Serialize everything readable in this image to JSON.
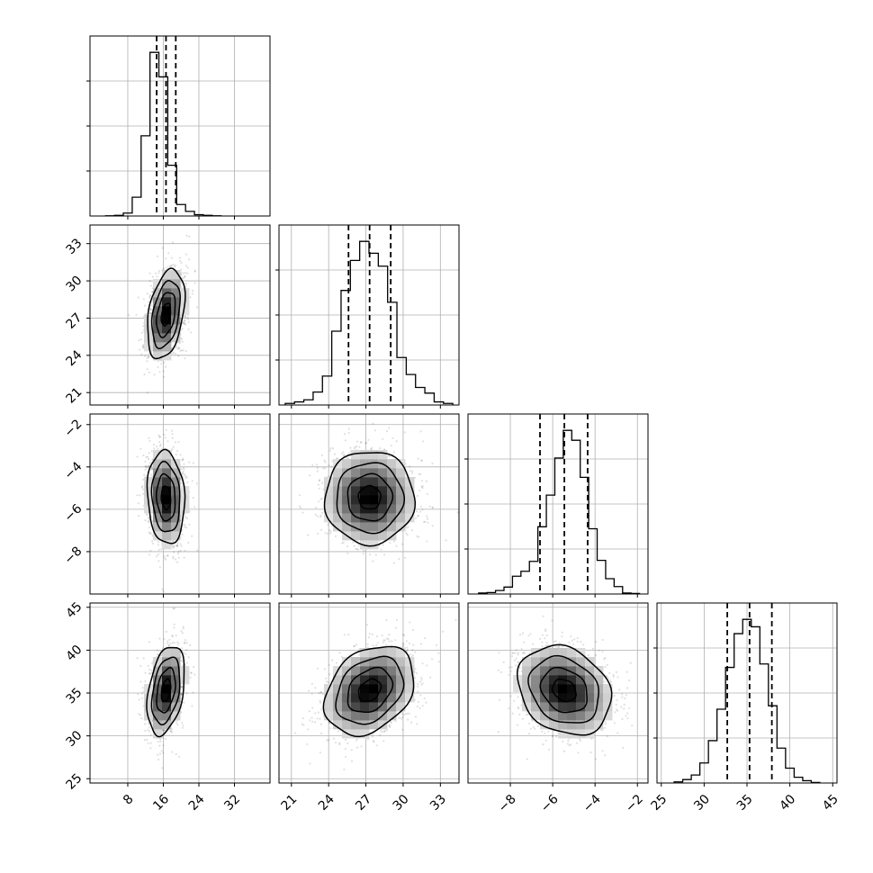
{
  "chart_data": {
    "type": "corner",
    "title": "",
    "parameters": [
      "",
      "",
      "",
      ""
    ],
    "grid": true,
    "colors": {
      "hist": "#000000",
      "quantile": "#000000",
      "grid": "#b0b0b0",
      "density": "#000000",
      "points": "#000000"
    },
    "quantile_style": "dashed",
    "ranges": [
      [
        -0.5,
        40
      ],
      [
        20,
        34.5
      ],
      [
        -10,
        -1.5
      ],
      [
        24.5,
        45.5
      ]
    ],
    "ticks": [
      {
        "values": [
          8,
          16,
          24,
          32
        ],
        "labels": [
          "8",
          "16",
          "24",
          "32"
        ]
      },
      {
        "values": [
          21,
          24,
          27,
          30,
          33
        ],
        "labels": [
          "21",
          "24",
          "27",
          "30",
          "33"
        ]
      },
      {
        "values": [
          -8,
          -6,
          -4,
          -2
        ],
        "labels": [
          "−8",
          "−6",
          "−4",
          "−2"
        ]
      },
      {
        "values": [
          25,
          30,
          35,
          40,
          45
        ],
        "labels": [
          "25",
          "30",
          "35",
          "40",
          "45"
        ]
      }
    ],
    "quantiles": [
      [
        14.5,
        16.6,
        18.8
      ],
      [
        25.6,
        27.3,
        29.0
      ],
      [
        -6.6,
        -5.45,
        -4.35
      ],
      [
        32.7,
        35.3,
        37.9
      ]
    ],
    "histograms": [
      {
        "edges": [
          3,
          5,
          7,
          9,
          11,
          13,
          15,
          17,
          19,
          21,
          23,
          25,
          27,
          29
        ],
        "counts": [
          1,
          4,
          18,
          115,
          490,
          1000,
          850,
          310,
          70,
          28,
          8,
          4,
          1
        ]
      },
      {
        "edges": [
          20.5,
          21.25,
          22,
          22.75,
          23.5,
          24.25,
          25,
          25.75,
          26.5,
          27.25,
          28,
          28.75,
          29.5,
          30.25,
          31,
          31.75,
          32.5,
          33.25,
          34
        ],
        "counts": [
          3,
          6,
          10,
          25,
          56,
          143,
          222,
          280,
          317,
          294,
          269,
          199,
          92,
          59,
          34,
          23,
          6,
          3
        ]
      },
      {
        "edges": [
          -9.5,
          -9.1,
          -8.7,
          -8.3,
          -7.9,
          -7.5,
          -7.1,
          -6.7,
          -6.3,
          -5.9,
          -5.5,
          -5.1,
          -4.7,
          -4.3,
          -3.9,
          -3.5,
          -3.1,
          -2.7,
          -2.3,
          -1.9
        ],
        "counts": [
          2,
          3,
          7,
          14,
          36,
          46,
          66,
          136,
          200,
          275,
          331,
          311,
          236,
          132,
          68,
          31,
          15,
          2,
          1
        ]
      },
      {
        "edges": [
          26.5,
          27.5,
          28.5,
          29.5,
          30.5,
          31.5,
          32.5,
          33.5,
          34.5,
          35.5,
          36.5,
          37.5,
          38.5,
          39.5,
          40.5,
          41.5,
          42.5,
          43.5
        ],
        "counts": [
          2,
          6,
          14,
          35,
          74,
          129,
          202,
          261,
          286,
          273,
          208,
          135,
          61,
          26,
          10,
          4,
          1
        ]
      }
    ],
    "density_peaks": [
      {
        "x": 1,
        "y": 0,
        "mean": [
          16.6,
          27.3
        ],
        "sd": [
          2.1,
          1.8
        ],
        "rho": 0.35
      },
      {
        "x": 2,
        "y": 0,
        "mean": [
          16.6,
          -5.45
        ],
        "sd": [
          2.1,
          1.1
        ],
        "rho": -0.12
      },
      {
        "x": 2,
        "y": 1,
        "mean": [
          27.3,
          -5.45
        ],
        "sd": [
          1.8,
          1.1
        ],
        "rho": 0.0
      },
      {
        "x": 3,
        "y": 0,
        "mean": [
          16.6,
          35.3
        ],
        "sd": [
          2.1,
          2.6
        ],
        "rho": 0.35
      },
      {
        "x": 3,
        "y": 1,
        "mean": [
          27.3,
          35.3
        ],
        "sd": [
          1.8,
          2.6
        ],
        "rho": 0.3
      },
      {
        "x": 3,
        "y": 2,
        "mean": [
          -5.45,
          35.3
        ],
        "sd": [
          1.1,
          2.6
        ],
        "rho": -0.22
      }
    ]
  }
}
